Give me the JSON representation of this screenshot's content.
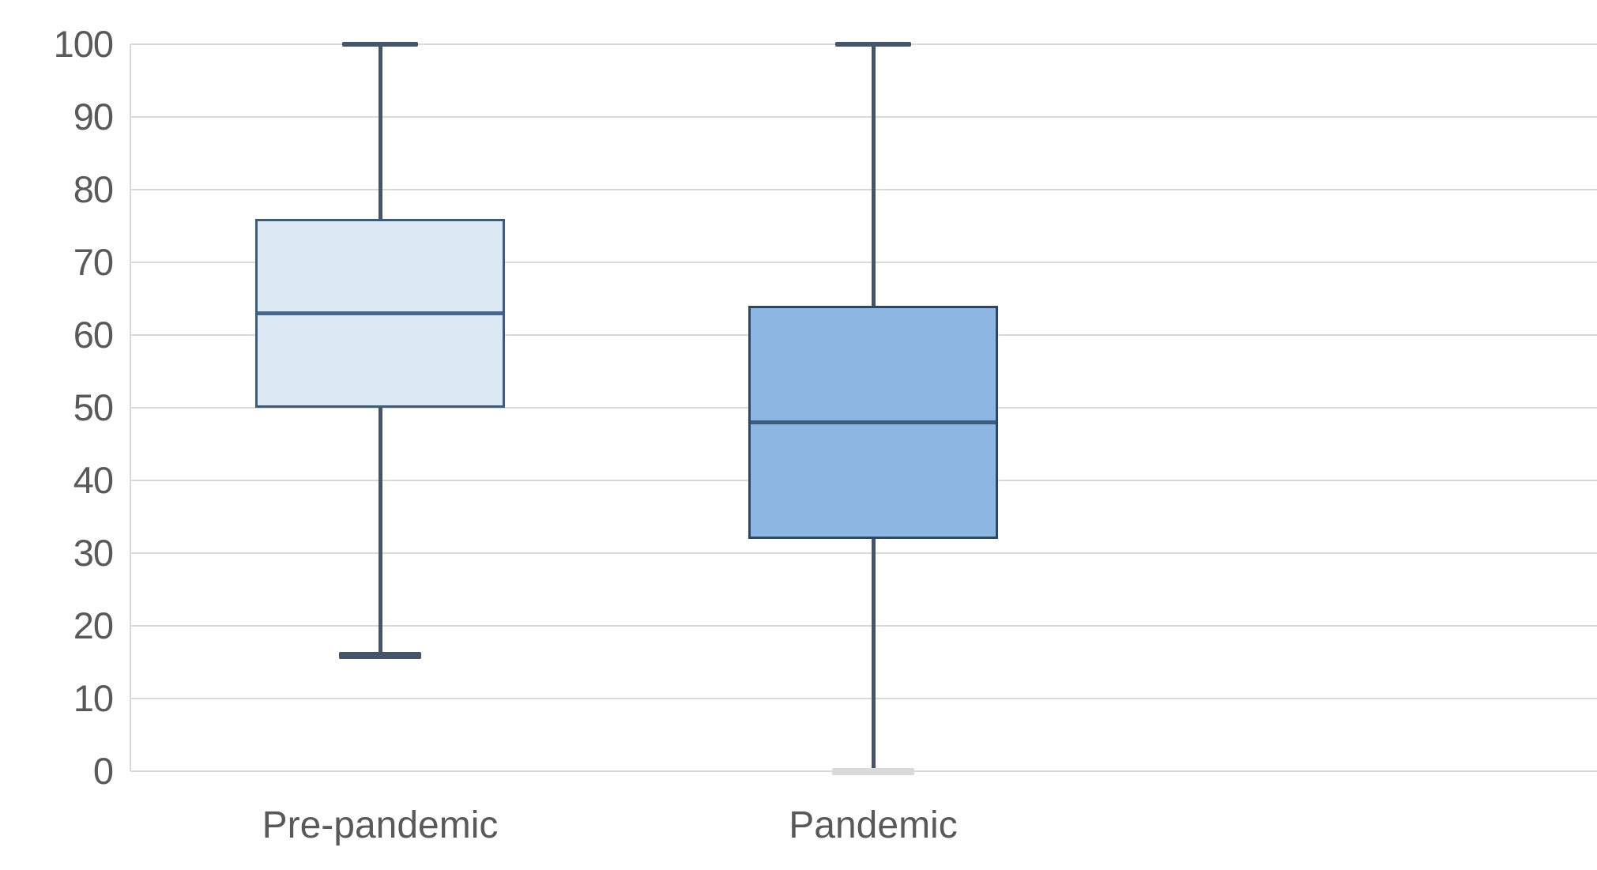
{
  "chart_data": {
    "type": "boxplot",
    "title": "",
    "xlabel": "",
    "ylabel": "",
    "ylim": [
      0,
      100
    ],
    "yticks": [
      0,
      10,
      20,
      30,
      40,
      50,
      60,
      70,
      80,
      90,
      100
    ],
    "grid": true,
    "legend": false,
    "categories": [
      "Pre-pandemic",
      "Pandemic"
    ],
    "series": [
      {
        "name": "Pre-pandemic",
        "min": 16,
        "q1": 50,
        "median": 63,
        "q3": 76,
        "max": 100,
        "fill_color": "#dde8f5",
        "border_color": "#3a5d7e",
        "median_color": "#45688c",
        "whisker_color": "#44546a",
        "max_cap_color": "#44546a",
        "min_cap_color": "#44546a"
      },
      {
        "name": "Pandemic",
        "min": 0,
        "q1": 32,
        "median": 48,
        "q3": 64,
        "max": 100,
        "fill_color": "#8db7e2",
        "border_color": "#2c4963",
        "median_color": "#3c5c80",
        "whisker_color": "#44546a",
        "max_cap_color": "#44546a",
        "min_cap_color": "#d9d9d9"
      }
    ],
    "colors": {
      "background": "#ffffff",
      "gridline": "#d9d9d9",
      "axis_line": "#d9d9d9",
      "tick_text": "#595959",
      "category_text": "#595959"
    }
  }
}
